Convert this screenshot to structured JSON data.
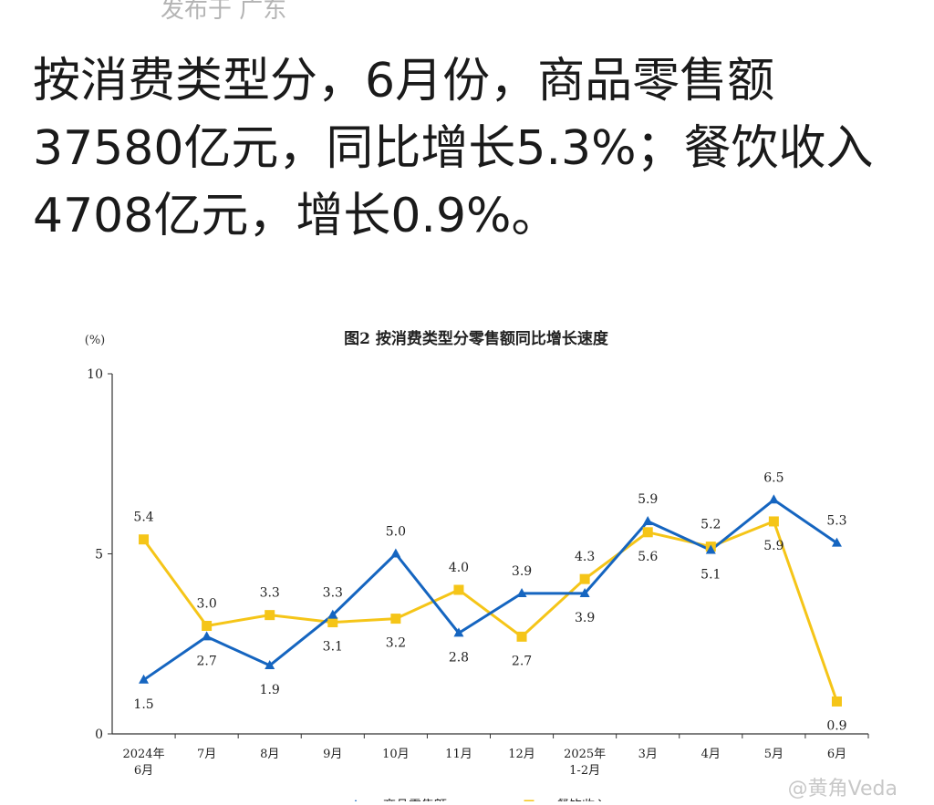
{
  "post": {
    "location_text": "发布于 广东",
    "headline": "按消费类型分，6月份，商品零售额37580亿元，同比增长5.3%；餐饮收入 4708亿元，增长0.9%。"
  },
  "watermark": "@黄角Veda",
  "chart_data": {
    "type": "line",
    "title": "图2  按消费类型分零售额同比增长速度",
    "y_unit": "(%)",
    "ylim": [
      0,
      10
    ],
    "yticks": [
      0,
      5,
      10
    ],
    "categories": [
      "2024年\n6月",
      "7月",
      "8月",
      "9月",
      "10月",
      "11月",
      "12月",
      "2025年\n1-2月",
      "3月",
      "4月",
      "5月",
      "6月"
    ],
    "series": [
      {
        "name": "商品零售额",
        "color": "#1565c0",
        "marker": "triangle",
        "values": [
          1.5,
          2.7,
          1.9,
          3.3,
          5.0,
          2.8,
          3.9,
          3.9,
          5.9,
          5.1,
          6.5,
          5.3
        ]
      },
      {
        "name": "餐饮收入",
        "color": "#f5c518",
        "marker": "square",
        "values": [
          5.4,
          3.0,
          3.3,
          3.1,
          3.2,
          4.0,
          2.7,
          4.3,
          5.6,
          5.2,
          5.9,
          0.9
        ]
      }
    ],
    "grid": false,
    "legend_position": "bottom"
  }
}
